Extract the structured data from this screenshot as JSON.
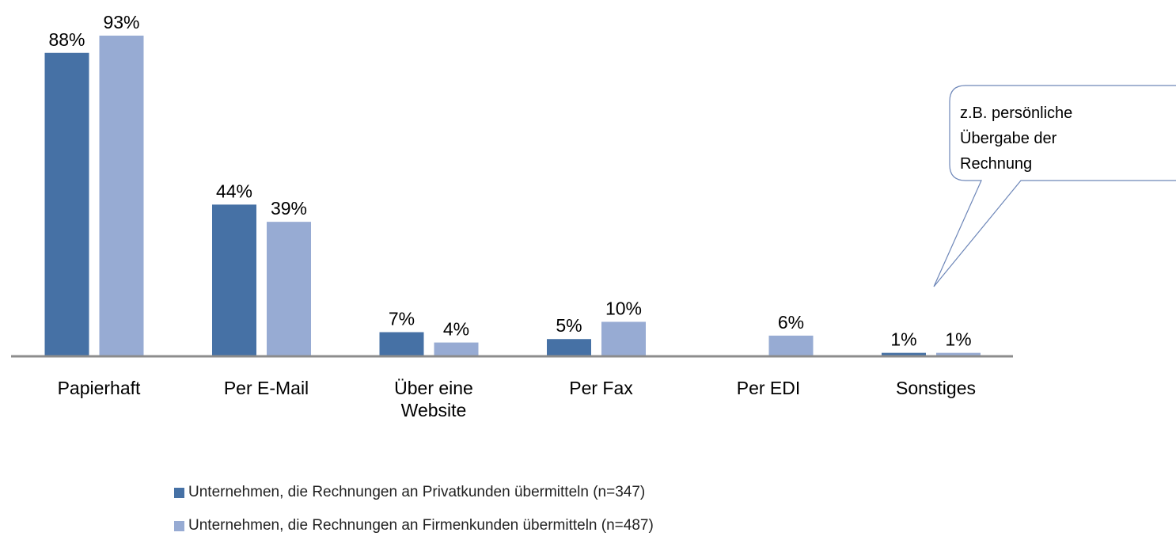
{
  "chart_data": {
    "type": "bar",
    "categories": [
      "Papierhaft",
      "Per E-Mail",
      "Über eine Website",
      "Per Fax",
      "Per EDI",
      "Sonstiges"
    ],
    "series": [
      {
        "name": "Unternehmen, die Rechnungen an Privatkunden übermitteln (n=347)",
        "color": "#4671a5",
        "values": [
          88,
          44,
          7,
          5,
          null,
          1
        ],
        "value_labels": [
          "88%",
          "44%",
          "7%",
          "5%",
          null,
          "1%"
        ]
      },
      {
        "name": "Unternehmen, die Rechnungen an Firmenkunden übermitteln (n=487)",
        "color": "#97abd3",
        "values": [
          93,
          39,
          4,
          10,
          6,
          1
        ],
        "value_labels": [
          "93%",
          "39%",
          "4%",
          "10%",
          "6%",
          "1%"
        ]
      }
    ],
    "annotation": "z.B. persönliche Übergabe der Rechnung"
  }
}
